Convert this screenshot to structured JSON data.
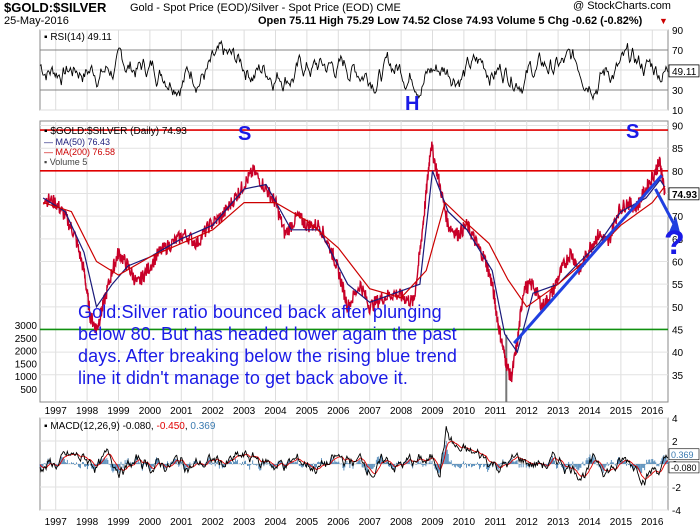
{
  "header": {
    "title": "$GOLD:$SILVER",
    "subtitle": "Gold - Spot Price (EOD)/Silver - Spot Price (EOD) CME",
    "date": "25-May-2016",
    "ohlc": "Open 75.11  High 75.29  Low 74.52  Close 74.93  Volume 5  Chg -0.62 (-0.82%)",
    "brand": "@ StockCharts.com",
    "chg_color": "#cc0000"
  },
  "chart_data": [
    {
      "type": "line",
      "panel": "rsi",
      "title": "RSI(14) 49.11",
      "ylim": [
        10,
        90
      ],
      "y_ticks": [
        "10",
        "30",
        "50",
        "70",
        "90"
      ],
      "last_value_label": "49.11",
      "reference_lines": [
        30,
        70
      ],
      "color": "#000000"
    },
    {
      "type": "line",
      "panel": "price",
      "legend": {
        "main": "$GOLD:$SILVER (Daily) 74.93",
        "ma50": "MA(50) 76.43",
        "ma200": "MA(200) 76.58",
        "volume": "Volume 5"
      },
      "ylim": [
        29,
        91
      ],
      "y_ticks": [
        "35",
        "40",
        "45",
        "50",
        "55",
        "60",
        "65",
        "70",
        "75",
        "80",
        "85",
        "90"
      ],
      "volume_ticks": [
        "500",
        "1000",
        "1500",
        "2000",
        "2500",
        "3000"
      ],
      "last_value_label": "74.93",
      "x_ticks": [
        "1997",
        "1998",
        "1999",
        "2000",
        "2001",
        "2002",
        "2003",
        "2004",
        "2005",
        "2006",
        "2007",
        "2008",
        "2009",
        "2010",
        "2011",
        "2012",
        "2013",
        "2014",
        "2015",
        "2016"
      ],
      "series": [
        {
          "name": "$GOLD:$SILVER (Daily)",
          "color": "#c80028",
          "x": [
            1996.6,
            1997.0,
            1997.3,
            1997.6,
            1997.9,
            1998.1,
            1998.3,
            1998.5,
            1998.8,
            1999.0,
            1999.3,
            1999.6,
            1999.9,
            2000.3,
            2000.7,
            2001.1,
            2001.5,
            2001.9,
            2002.3,
            2002.7,
            2003.0,
            2003.3,
            2003.7,
            2004.0,
            2004.3,
            2004.7,
            2005.0,
            2005.4,
            2005.8,
            2006.0,
            2006.3,
            2006.7,
            2007.0,
            2007.4,
            2007.8,
            2008.1,
            2008.4,
            2008.6,
            2008.8,
            2008.95,
            2009.2,
            2009.5,
            2009.8,
            2010.1,
            2010.4,
            2010.7,
            2010.9,
            2011.1,
            2011.3,
            2011.5,
            2011.7,
            2011.9,
            2012.2,
            2012.5,
            2012.8,
            2013.1,
            2013.4,
            2013.7,
            2014.0,
            2014.3,
            2014.6,
            2014.9,
            2015.2,
            2015.5,
            2015.8,
            2016.1,
            2016.25,
            2016.4
          ],
          "y": [
            74,
            73,
            70,
            66,
            58,
            48,
            45,
            50,
            58,
            62,
            59,
            55,
            58,
            62,
            64,
            66,
            64,
            68,
            70,
            74,
            77,
            80,
            76,
            73,
            66,
            70,
            68,
            68,
            62,
            58,
            50,
            55,
            50,
            52,
            53,
            52,
            51,
            62,
            75,
            86,
            78,
            68,
            66,
            68,
            64,
            60,
            55,
            46,
            39,
            34,
            42,
            54,
            55,
            50,
            53,
            58,
            62,
            58,
            63,
            66,
            64,
            71,
            73,
            72,
            76,
            80,
            82,
            75
          ]
        },
        {
          "name": "MA(50)",
          "color": "#1a1a7a",
          "x": [
            1996.6,
            1997.3,
            1997.9,
            1998.3,
            1998.8,
            1999.3,
            2000.0,
            2001.0,
            2002.0,
            2003.0,
            2003.7,
            2004.5,
            2005.4,
            2006.3,
            2007.0,
            2007.8,
            2008.6,
            2009.0,
            2009.5,
            2010.1,
            2010.9,
            2011.3,
            2011.7,
            2012.2,
            2013.0,
            2013.7,
            2014.3,
            2015.0,
            2015.8,
            2016.25,
            2016.4
          ],
          "y": [
            74,
            71,
            62,
            50,
            55,
            59,
            61,
            65,
            68,
            76,
            77,
            67,
            67,
            55,
            51,
            53,
            55,
            80,
            71,
            67,
            58,
            44,
            40,
            53,
            55,
            60,
            64,
            71,
            74,
            78,
            76.4
          ]
        },
        {
          "name": "MA(200)",
          "color": "#cc0000",
          "x": [
            1996.6,
            1997.5,
            1998.3,
            1999.0,
            2000.0,
            2001.0,
            2002.0,
            2003.0,
            2004.0,
            2005.0,
            2006.0,
            2007.0,
            2008.0,
            2008.8,
            2009.4,
            2010.0,
            2010.8,
            2011.4,
            2012.0,
            2013.0,
            2014.0,
            2015.0,
            2016.0,
            2016.4
          ],
          "y": [
            73,
            71,
            60,
            57,
            61,
            64,
            67,
            73,
            73,
            69,
            63,
            54,
            52,
            58,
            73,
            69,
            64,
            56,
            50,
            55,
            61,
            68,
            73,
            76.6
          ]
        }
      ],
      "reference_lines": [
        {
          "y": 89,
          "color": "#e00000"
        },
        {
          "y": 80,
          "color": "#e00000"
        },
        {
          "y": 45,
          "color": "#109010"
        }
      ],
      "trendline": {
        "color": "#2040e0",
        "x": [
          2011.6,
          2016.3
        ],
        "y": [
          42,
          79
        ]
      },
      "volume_spikes": [
        {
          "x": 2011.35,
          "v": 2800
        }
      ],
      "annotations": {
        "left_shoulder": "S",
        "head": "H",
        "right_shoulder": "S",
        "question": "?"
      }
    },
    {
      "type": "line",
      "panel": "macd",
      "title": "MACD(12,26,9) -0.080, -0.450, 0.369",
      "title_parts": [
        "MACD(12,26,9) -0.080, ",
        "-0.450",
        ", ",
        "0.369"
      ],
      "ylim": [
        -4,
        4
      ],
      "y_ticks": [
        "-4",
        "-2",
        "0",
        "2",
        "4"
      ],
      "last_value_labels": [
        "0.369",
        "-0.080"
      ],
      "colors": {
        "macd": "#000000",
        "signal": "#e00000",
        "histogram": "#3a7ab0"
      }
    }
  ],
  "annotation_text": [
    "Gold:Silver ratio bounced back after plunging",
    "below 80. But has headed lower again the past",
    "days. After breaking below the rising blue trend",
    "line it didn't manage to get back above it."
  ]
}
